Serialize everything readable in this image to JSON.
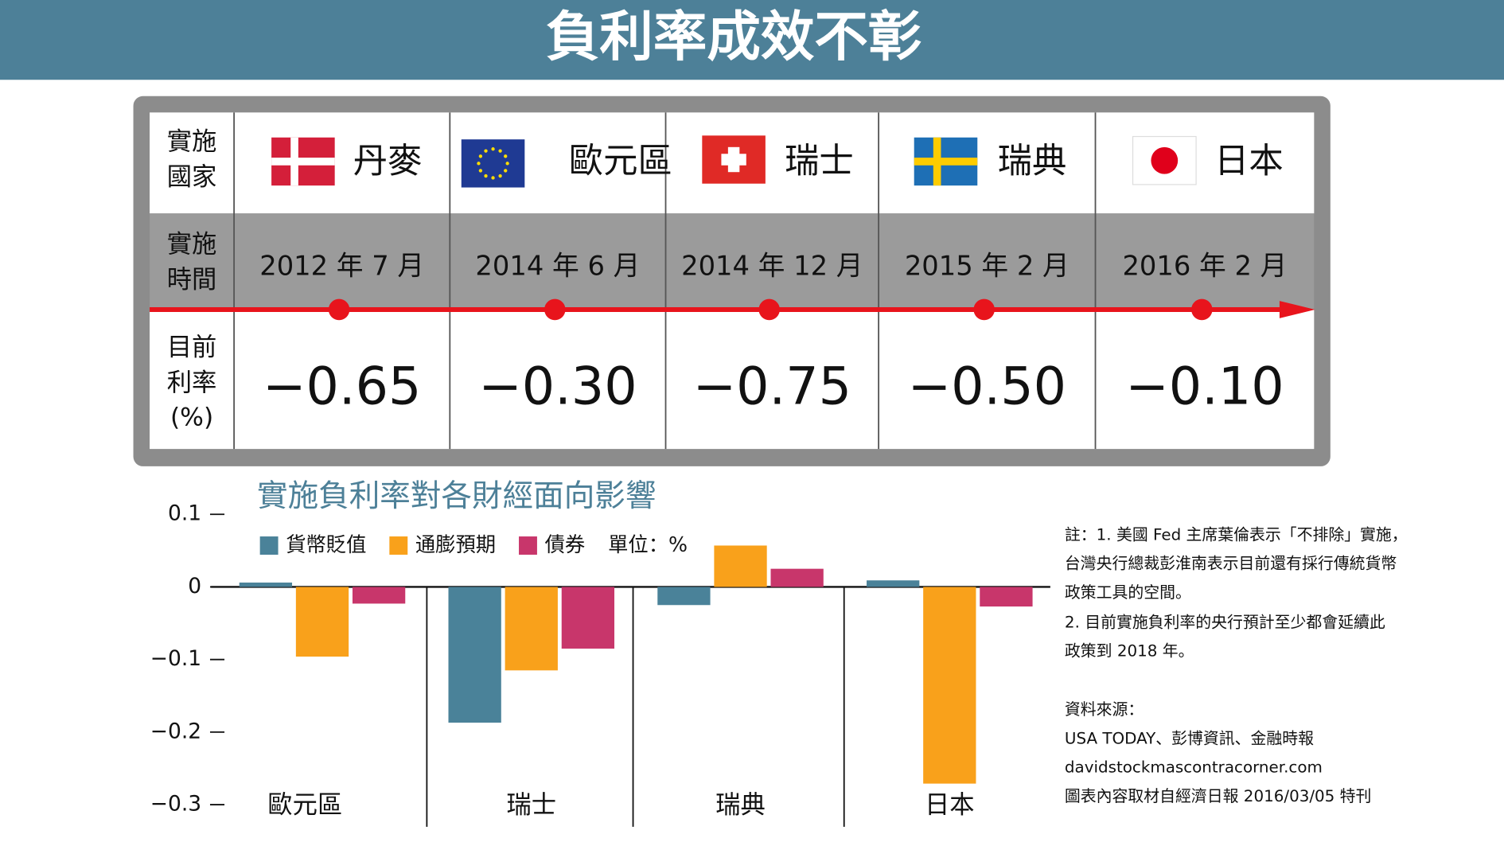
{
  "title": "負利率成效不彰",
  "table": {
    "row_headers": [
      [
        "實施",
        "國家"
      ],
      [
        "實施",
        "時間"
      ],
      [
        "目前",
        "利率",
        "(%)"
      ]
    ],
    "columns": [
      {
        "country": "丹麥",
        "date": "2012 年 7 月",
        "rate": "−0.65"
      },
      {
        "country": "歐元區",
        "date": "2014 年 6 月",
        "rate": "−0.30"
      },
      {
        "country": "瑞士",
        "date": "2014 年 12 月",
        "rate": "−0.75"
      },
      {
        "country": "瑞典",
        "date": "2015 年 2 月",
        "rate": "−0.50"
      },
      {
        "country": "日本",
        "date": "2016 年 2 月",
        "rate": "−0.10"
      }
    ]
  },
  "chart_data": {
    "type": "bar",
    "title": "實施負利率對各財經面向影響",
    "unit": "單位：%",
    "categories": [
      "歐元區",
      "瑞士",
      "瑞典",
      "日本"
    ],
    "series": [
      {
        "name": "貨幣貶值",
        "color": "#4a8299",
        "values": [
          0.006,
          -0.187,
          -0.025,
          0.009
        ]
      },
      {
        "name": "通膨預期",
        "color": "#f9a11b",
        "values": [
          -0.096,
          -0.115,
          0.057,
          -0.271
        ]
      },
      {
        "name": "債券",
        "color": "#c8366b",
        "values": [
          -0.023,
          -0.085,
          0.025,
          -0.027
        ]
      }
    ],
    "ylim": [
      -0.3,
      0.1
    ],
    "yticks": [
      0.1,
      0,
      {
        "value": -0.1,
        "label": "−0.1"
      },
      {
        "value": -0.2,
        "label": "−0.2"
      },
      {
        "value": -0.3,
        "label": "−0.3"
      }
    ],
    "grid": false
  },
  "notes": [
    "註：1. 美國 Fed 主席葉倫表示「不排除」實施，",
    "台灣央行總裁彭淮南表示目前還有採行傳統貨幣",
    "政策工具的空間。",
    "2. 目前實施負利率的央行預計至少都會延續此",
    "政策到 2018 年。"
  ],
  "sources": [
    "資料來源：",
    "USA TODAY、彭博資訊、金融時報",
    "davidstockmascontracorner.com",
    "圖表內容取材自經濟日報 2016/03/05 特刊"
  ]
}
